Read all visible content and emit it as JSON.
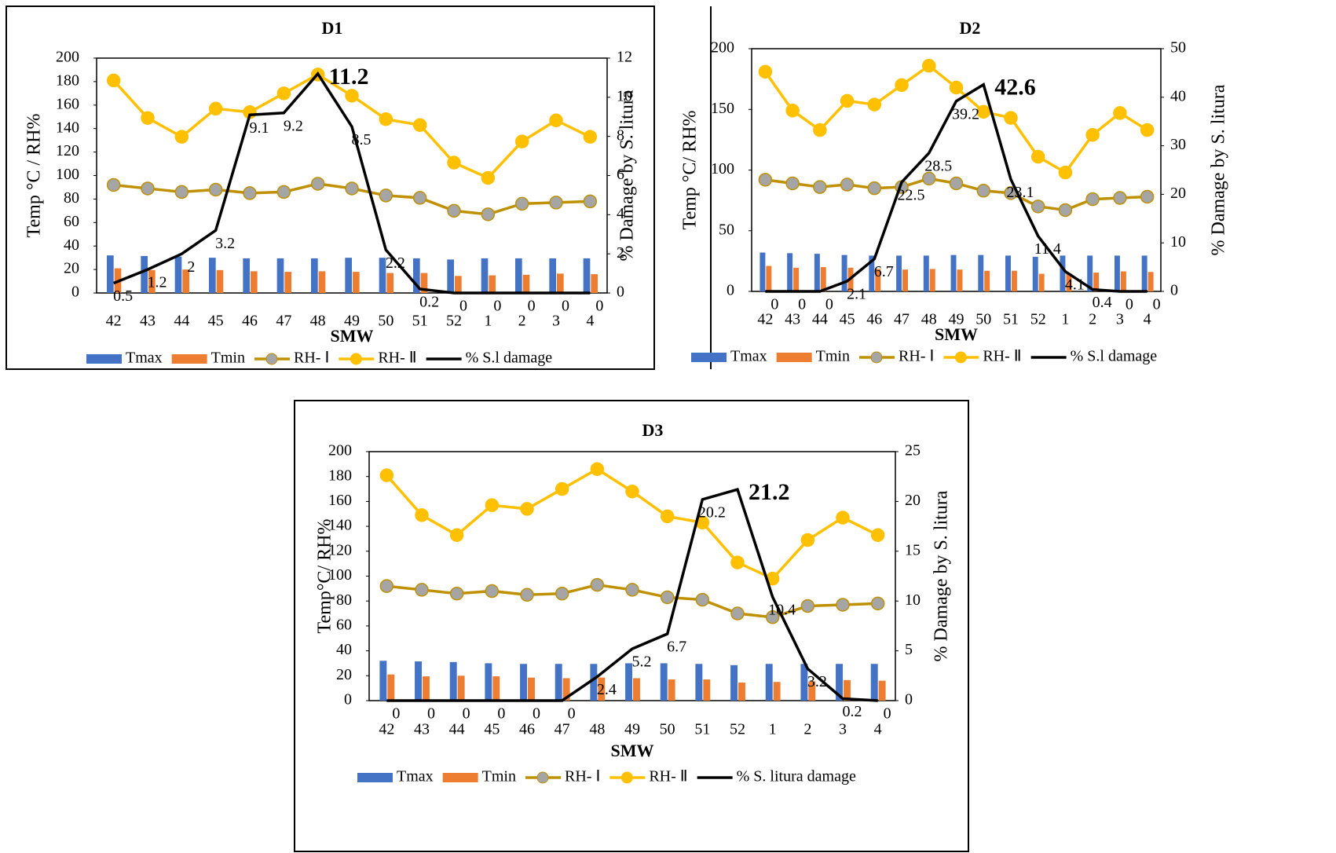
{
  "chart_data": [
    {
      "type": "combo",
      "title": "D1",
      "x_label": "SMW",
      "y_label": "Temp °C / RH%",
      "y2_label": "% Damage by S. litura",
      "categories": [
        "42",
        "43",
        "44",
        "45",
        "46",
        "47",
        "48",
        "49",
        "50",
        "51",
        "52",
        "1",
        "2",
        "3",
        "4"
      ],
      "ylim": [
        0,
        200
      ],
      "yticks": [
        0,
        20,
        40,
        60,
        80,
        100,
        120,
        140,
        160,
        180,
        200
      ],
      "y2lim": [
        0,
        12
      ],
      "y2ticks": [
        0,
        2,
        4,
        6,
        8,
        10,
        12
      ],
      "peak_label_color": "#ff0000",
      "series": [
        {
          "name": "Tmax",
          "type": "bar",
          "color": "#4472c4",
          "values": [
            32,
            31.5,
            31,
            30,
            29.5,
            29.5,
            29.5,
            30,
            30,
            29.5,
            28.5,
            29.5,
            29.5,
            29.5,
            29.5
          ]
        },
        {
          "name": "Tmin",
          "type": "bar",
          "color": "#ed7d31",
          "values": [
            21,
            19.5,
            20,
            19.5,
            18.5,
            18,
            18.5,
            18,
            17,
            17,
            14.5,
            15,
            15.5,
            16.5,
            16
          ]
        },
        {
          "name": "RH- Ⅰ",
          "type": "line",
          "color": "#bf9000",
          "marker_color": "#a5a5a5",
          "values": [
            92,
            89,
            86,
            88,
            85,
            86,
            93,
            89,
            83,
            81,
            70,
            67,
            76,
            77,
            78
          ]
        },
        {
          "name": "RH- Ⅱ",
          "type": "line",
          "color": "#ffc000",
          "marker_color": "#ffc000",
          "values": [
            181,
            149,
            133,
            157,
            154,
            170,
            186,
            168,
            148,
            143,
            111,
            98,
            129,
            147,
            133
          ]
        },
        {
          "name": "% S.l damage",
          "type": "line",
          "color": "#000000",
          "axis": "y2",
          "data_labels": true,
          "values": [
            0.5,
            1.2,
            2,
            3.2,
            9.1,
            9.2,
            11.2,
            8.5,
            2.2,
            0.2,
            0,
            0,
            0,
            0,
            0
          ]
        }
      ]
    },
    {
      "type": "combo",
      "title": "D2",
      "x_label": "SMW",
      "y_label": "Temp °C/ RH%",
      "y2_label": "% Damage by S. litura",
      "categories": [
        "42",
        "43",
        "44",
        "45",
        "46",
        "47",
        "48",
        "49",
        "50",
        "51",
        "52",
        "1",
        "2",
        "3",
        "4"
      ],
      "ylim": [
        0,
        200
      ],
      "yticks": [
        0,
        50,
        100,
        150,
        200
      ],
      "y2lim": [
        0,
        50
      ],
      "y2ticks": [
        0,
        10,
        20,
        30,
        40,
        50
      ],
      "peak_label_color": "#ff0000",
      "series": [
        {
          "name": "Tmax",
          "type": "bar",
          "color": "#4472c4",
          "values": [
            32,
            31.5,
            31,
            30,
            29.5,
            29.5,
            29.5,
            30,
            30,
            29.5,
            28.5,
            29.5,
            29.5,
            29.5,
            29.5
          ]
        },
        {
          "name": "Tmin",
          "type": "bar",
          "color": "#ed7d31",
          "values": [
            21,
            19.5,
            20,
            19.5,
            18.5,
            18,
            18.5,
            18,
            17,
            17,
            14.5,
            15,
            15.5,
            16.5,
            16
          ]
        },
        {
          "name": "RH- Ⅰ",
          "type": "line",
          "color": "#bf9000",
          "marker_color": "#a5a5a5",
          "values": [
            92,
            89,
            86,
            88,
            85,
            86,
            93,
            89,
            83,
            81,
            70,
            67,
            76,
            77,
            78
          ]
        },
        {
          "name": "RH- Ⅱ",
          "type": "line",
          "color": "#ffc000",
          "marker_color": "#ffc000",
          "values": [
            181,
            149,
            133,
            157,
            154,
            170,
            186,
            168,
            148,
            143,
            111,
            98,
            129,
            147,
            133
          ]
        },
        {
          "name": "% S.l damage",
          "type": "line",
          "color": "#000000",
          "axis": "y2",
          "data_labels": true,
          "values": [
            0,
            0,
            0,
            2.1,
            6.7,
            22.5,
            28.5,
            39.2,
            42.6,
            23.1,
            11.4,
            4.1,
            0.4,
            0,
            0
          ]
        }
      ]
    },
    {
      "type": "combo",
      "title": "D3",
      "x_label": "SMW",
      "y_label": "Temp°C/ RH%",
      "y2_label": "% Damage by S. litura",
      "categories": [
        "42",
        "43",
        "44",
        "45",
        "46",
        "47",
        "48",
        "49",
        "50",
        "51",
        "52",
        "1",
        "2",
        "3",
        "4"
      ],
      "ylim": [
        0,
        200
      ],
      "yticks": [
        0,
        20,
        40,
        60,
        80,
        100,
        120,
        140,
        160,
        180,
        200
      ],
      "y2lim": [
        0,
        25
      ],
      "y2ticks": [
        0,
        5,
        10,
        15,
        20,
        25
      ],
      "peak_label_color": "#ff0000",
      "series": [
        {
          "name": "Tmax",
          "type": "bar",
          "color": "#4472c4",
          "values": [
            32,
            31.5,
            31,
            30,
            29.5,
            29.5,
            29.5,
            30,
            30,
            29.5,
            28.5,
            29.5,
            29.5,
            29.5,
            29.5
          ]
        },
        {
          "name": "Tmin",
          "type": "bar",
          "color": "#ed7d31",
          "values": [
            21,
            19.5,
            20,
            19.5,
            18.5,
            18,
            18.5,
            18,
            17,
            17,
            14.5,
            15,
            15.5,
            16.5,
            16
          ]
        },
        {
          "name": "RH- Ⅰ",
          "type": "line",
          "color": "#bf9000",
          "marker_color": "#a5a5a5",
          "values": [
            92,
            89,
            86,
            88,
            85,
            86,
            93,
            89,
            83,
            81,
            70,
            67,
            76,
            77,
            78
          ]
        },
        {
          "name": "RH- Ⅱ",
          "type": "line",
          "color": "#ffc000",
          "marker_color": "#ffc000",
          "values": [
            181,
            149,
            133,
            157,
            154,
            170,
            186,
            168,
            148,
            143,
            111,
            98,
            129,
            147,
            133
          ]
        },
        {
          "name": "% S. litura damage",
          "type": "line",
          "color": "#000000",
          "axis": "y2",
          "data_labels": true,
          "values": [
            0,
            0,
            0,
            0,
            0,
            0,
            2.4,
            5.2,
            6.7,
            20.2,
            21.2,
            10.4,
            3.2,
            0.2,
            0
          ]
        }
      ]
    }
  ]
}
